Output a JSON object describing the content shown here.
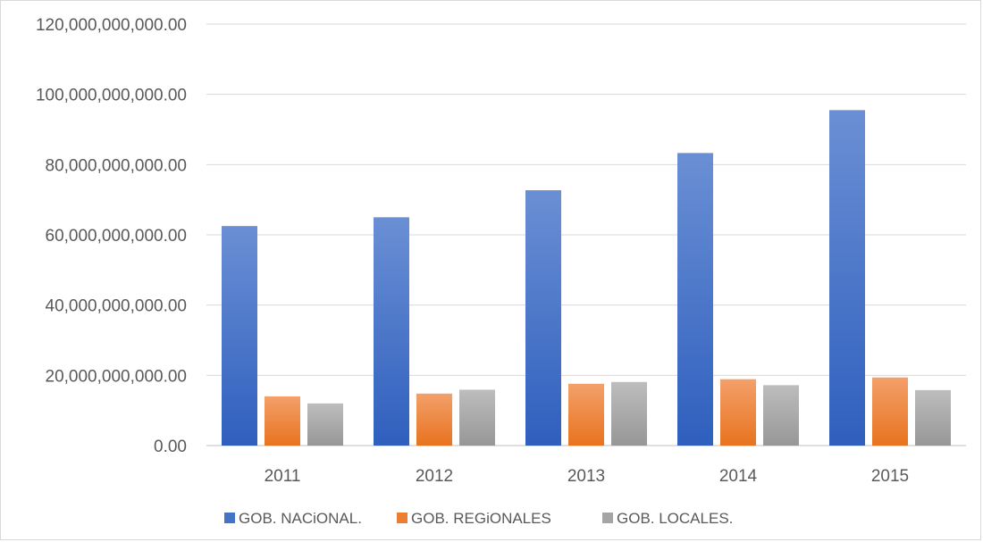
{
  "chart_data": {
    "type": "bar",
    "categories": [
      "2011",
      "2012",
      "2013",
      "2014",
      "2015"
    ],
    "series": [
      {
        "name": "GOB. NACiONAL.",
        "values": [
          62500000000,
          65000000000,
          72700000000,
          83300000000,
          95500000000
        ],
        "color": "#4472c4"
      },
      {
        "name": "GOB. REGiONALES",
        "values": [
          14000000000,
          14800000000,
          17600000000,
          18900000000,
          19400000000
        ],
        "color": "#ed7d31"
      },
      {
        "name": "GOB. LOCALES.",
        "values": [
          12000000000,
          15900000000,
          18100000000,
          17200000000,
          15800000000
        ],
        "color": "#a5a5a5"
      }
    ],
    "y_ticks": [
      "0.00",
      "20,000,000,000.00",
      "40,000,000,000.00",
      "60,000,000,000.00",
      "80,000,000,000.00",
      "100,000,000,000.00",
      "120,000,000,000.00"
    ],
    "ylim": [
      0,
      120000000000
    ],
    "grid": true,
    "legend_position": "bottom",
    "title": "",
    "xlabel": "",
    "ylabel": ""
  }
}
